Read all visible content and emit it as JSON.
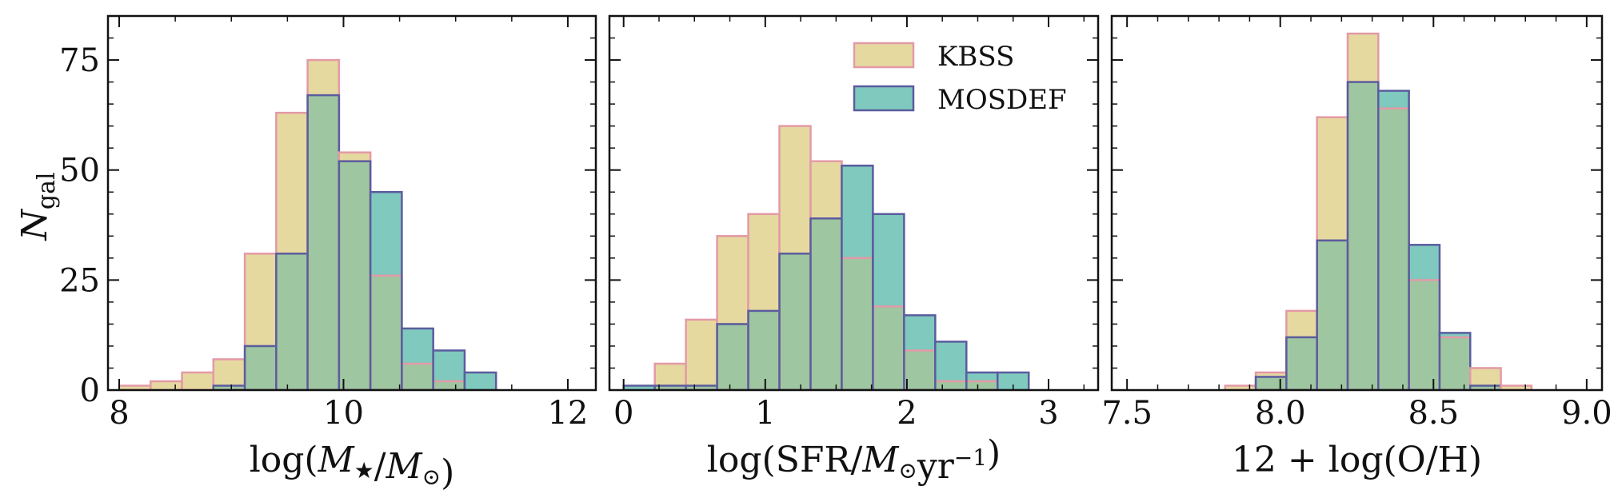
{
  "figure": {
    "ylabel_main": "N",
    "ylabel_sub": "gal"
  },
  "legend": {
    "location": "top-right of middle panel",
    "entries": [
      {
        "name": "KBSS",
        "fill": "#e6d9a0",
        "edge": "#e39aa6"
      },
      {
        "name": "MOSDEF",
        "fill": "#7fc9be",
        "edge": "#5b5c9e"
      }
    ]
  },
  "colors": {
    "kbss_fill": "#e6d9a0",
    "kbss_edge": "#e39aa6",
    "mosdef_fill": "#7fc9be",
    "mosdef_edge": "#5b5c9e",
    "overlap_fill": "#9ec6a0"
  },
  "chart_data": [
    {
      "type": "bar",
      "subtype": "histogram",
      "title": "",
      "xlabel": "log(M★/M⊙)",
      "ylabel": "N_gal",
      "xlim": [
        7.9,
        12.25
      ],
      "ylim": [
        0,
        85
      ],
      "xticks": [
        8,
        10,
        12
      ],
      "xtick_labels": [
        "8",
        "10",
        "12"
      ],
      "yticks": [
        0,
        25,
        50,
        75
      ],
      "ytick_labels": [
        "0",
        "25",
        "50",
        "75"
      ],
      "bin_edges": [
        8.0,
        8.28,
        8.56,
        8.84,
        9.12,
        9.4,
        9.68,
        9.96,
        10.24,
        10.52,
        10.8,
        11.08,
        11.36,
        11.64
      ],
      "series": [
        {
          "name": "KBSS",
          "values": [
            1,
            2,
            4,
            7,
            31,
            63,
            75,
            54,
            26,
            6,
            2,
            0,
            0
          ]
        },
        {
          "name": "MOSDEF",
          "values": [
            0,
            0,
            0,
            1,
            10,
            31,
            67,
            52,
            45,
            14,
            9,
            4,
            0
          ]
        }
      ]
    },
    {
      "type": "bar",
      "subtype": "histogram",
      "title": "",
      "xlabel": "log(SFR/M⊙yr⁻¹)",
      "ylabel": "",
      "xlim": [
        -0.1,
        3.35
      ],
      "ylim": [
        0,
        85
      ],
      "xticks": [
        0,
        1,
        2,
        3
      ],
      "xtick_labels": [
        "0",
        "1",
        "2",
        "3"
      ],
      "yticks": [
        0,
        25,
        50,
        75
      ],
      "ytick_labels": [],
      "bin_edges": [
        0.0,
        0.22,
        0.44,
        0.66,
        0.88,
        1.1,
        1.32,
        1.54,
        1.76,
        1.98,
        2.2,
        2.42,
        2.64,
        2.86,
        3.08
      ],
      "series": [
        {
          "name": "KBSS",
          "values": [
            0,
            6,
            16,
            35,
            40,
            60,
            52,
            30,
            19,
            9,
            2,
            2,
            0,
            0
          ]
        },
        {
          "name": "MOSDEF",
          "values": [
            1,
            1,
            1,
            15,
            18,
            31,
            39,
            51,
            40,
            17,
            11,
            4,
            4,
            0
          ]
        }
      ]
    },
    {
      "type": "bar",
      "subtype": "histogram",
      "title": "",
      "xlabel": "12 + log(O/H)",
      "ylabel": "",
      "xlim": [
        7.45,
        9.05
      ],
      "ylim": [
        0,
        85
      ],
      "xticks": [
        7.5,
        8.0,
        8.5,
        9.0
      ],
      "xtick_labels": [
        "7.5",
        "8.0",
        "8.5",
        "9.0"
      ],
      "yticks": [
        0,
        25,
        50,
        75
      ],
      "ytick_labels": [],
      "bin_edges": [
        7.82,
        7.92,
        8.02,
        8.12,
        8.22,
        8.32,
        8.42,
        8.52,
        8.62,
        8.72,
        8.82
      ],
      "series": [
        {
          "name": "KBSS",
          "values": [
            1,
            4,
            18,
            62,
            81,
            64,
            25,
            12,
            5,
            1
          ]
        },
        {
          "name": "MOSDEF",
          "values": [
            0,
            3,
            12,
            34,
            70,
            68,
            33,
            13,
            1,
            0
          ]
        }
      ]
    }
  ]
}
